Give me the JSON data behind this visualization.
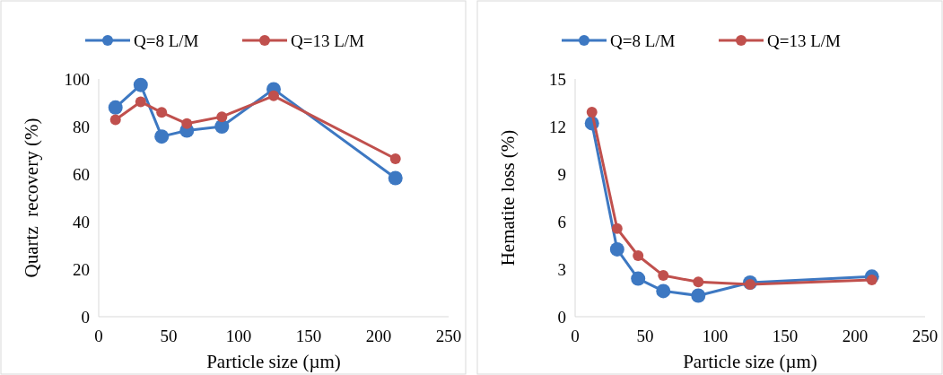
{
  "chart_data": [
    {
      "type": "line",
      "xlabel": "Particle size (µm)",
      "ylabel": "Quartz  recovery (%)",
      "xlim": [
        0,
        250
      ],
      "xticks": [
        0,
        50,
        100,
        150,
        200,
        250
      ],
      "ylim": [
        0,
        100
      ],
      "yticks": [
        0,
        20,
        40,
        60,
        80,
        100
      ],
      "legend": "top",
      "marker": "circle",
      "grid": false,
      "x": [
        12,
        30,
        45,
        63,
        88,
        125,
        212
      ],
      "series": [
        {
          "name": "Q=8 L/M",
          "color": "#3d78c2",
          "values": [
            88,
            97.5,
            75.8,
            78.3,
            80,
            95.7,
            58.3
          ]
        },
        {
          "name": "Q=13 L/M",
          "color": "#c0504d",
          "values": [
            82.8,
            90.4,
            85.9,
            81.2,
            84.1,
            92.9,
            66.4
          ]
        }
      ]
    },
    {
      "type": "line",
      "xlabel": "Particle size (µm)",
      "ylabel": "Hematite loss (%)",
      "xlim": [
        0,
        250
      ],
      "xticks": [
        0,
        50,
        100,
        150,
        200,
        250
      ],
      "ylim": [
        0,
        15
      ],
      "yticks": [
        0,
        3,
        6,
        9,
        12,
        15
      ],
      "legend": "top",
      "marker": "circle",
      "grid": false,
      "x": [
        12,
        30,
        45,
        63,
        88,
        125,
        212
      ],
      "series": [
        {
          "name": "Q=8 L/M",
          "color": "#3d78c2",
          "values": [
            12.2,
            4.25,
            2.4,
            1.62,
            1.33,
            2.15,
            2.53
          ]
        },
        {
          "name": "Q=13 L/M",
          "color": "#c0504d",
          "values": [
            12.9,
            5.56,
            3.85,
            2.6,
            2.19,
            2.04,
            2.32
          ]
        }
      ]
    }
  ]
}
